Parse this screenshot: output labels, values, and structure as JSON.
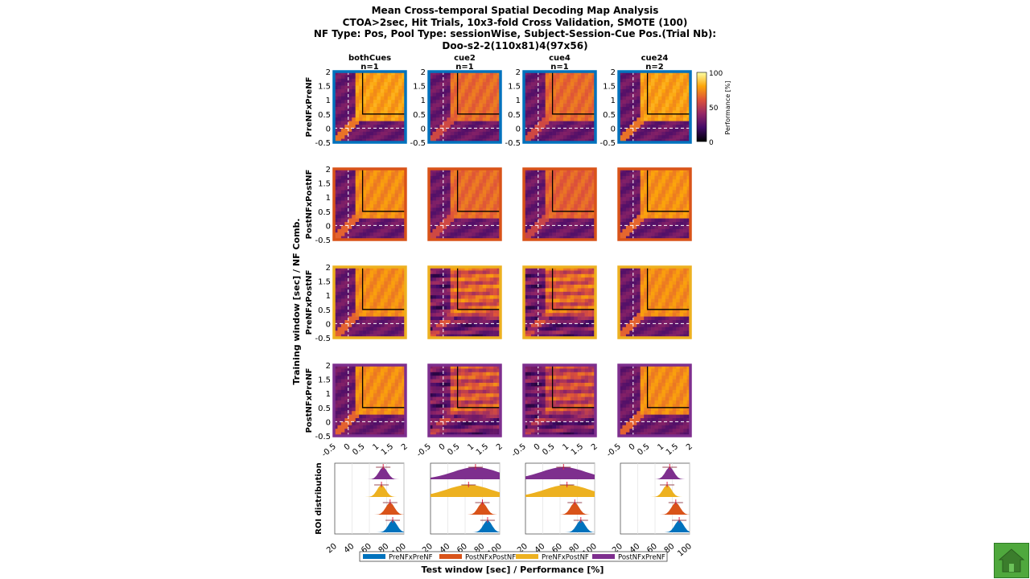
{
  "title_lines": [
    "Mean Cross-temporal Spatial Decoding Map Analysis",
    "CTOA>2sec, Hit Trials, 10x3-fold Cross Validation, SMOTE (100)",
    "NF Type: Pos, Pool Type: sessionWise, Subject-Session-Cue Pos.(Trial Nb):",
    "Doo-s2-2(110x81)4(97x56)"
  ],
  "colors": {
    "PreNFxPreNF": "#0072bd",
    "PostNFxPostNF": "#d95319",
    "PreNFxPostNF": "#edb120",
    "PostNFxPreNF": "#7e2f8e",
    "home_button": "#4fa83d"
  },
  "chart_data": {
    "type": "heatmap",
    "columns": [
      {
        "name": "bothCues",
        "n": "n=1"
      },
      {
        "name": "cue2",
        "n": "n=1"
      },
      {
        "name": "cue4",
        "n": "n=1"
      },
      {
        "name": "cue24",
        "n": "n=2"
      }
    ],
    "rows": [
      "PreNFxPreNF",
      "PostNFxPostNF",
      "PreNFxPostNF",
      "PostNFxPreNF"
    ],
    "x_axis": {
      "label": "Test window [sec] / Performance [%]",
      "range": [
        -0.5,
        2
      ],
      "ticks": [
        "-0.5",
        "0",
        "0.5",
        "1",
        "1.5",
        "2"
      ]
    },
    "y_axis": {
      "label": "Training window [sec] / NF Comb.",
      "range": [
        -0.5,
        2
      ],
      "ticks": [
        "2",
        "1.5",
        "1",
        "0.5",
        "0",
        "-0.5"
      ]
    },
    "colorbar": {
      "label": "Performance [%]",
      "range": [
        0,
        100
      ],
      "ticks": [
        "100",
        "50",
        "0"
      ],
      "colormap": "inferno"
    },
    "roi_box": {
      "x_from": 0.5,
      "y_from": 0.5
    },
    "onset_marker": 0,
    "approx_mean_performance": [
      [
        78,
        66,
        66,
        78
      ],
      [
        74,
        66,
        64,
        75
      ],
      [
        74,
        62,
        62,
        74
      ],
      [
        74,
        58,
        54,
        74
      ]
    ],
    "roi_distribution": {
      "label": "ROI distribution",
      "x_range": [
        20,
        100
      ],
      "x_ticks": [
        "20",
        "40",
        "60",
        "80",
        "100"
      ],
      "legend": [
        "PreNFxPreNF",
        "PostNFxPostNF",
        "PreNFxPostNF",
        "PostNFxPreNF"
      ],
      "means": [
        [
          87,
          84,
          74,
          76
        ],
        [
          86,
          80,
          64,
          72
        ],
        [
          84,
          77,
          68,
          64
        ],
        [
          88,
          84,
          74,
          77
        ]
      ]
    }
  }
}
